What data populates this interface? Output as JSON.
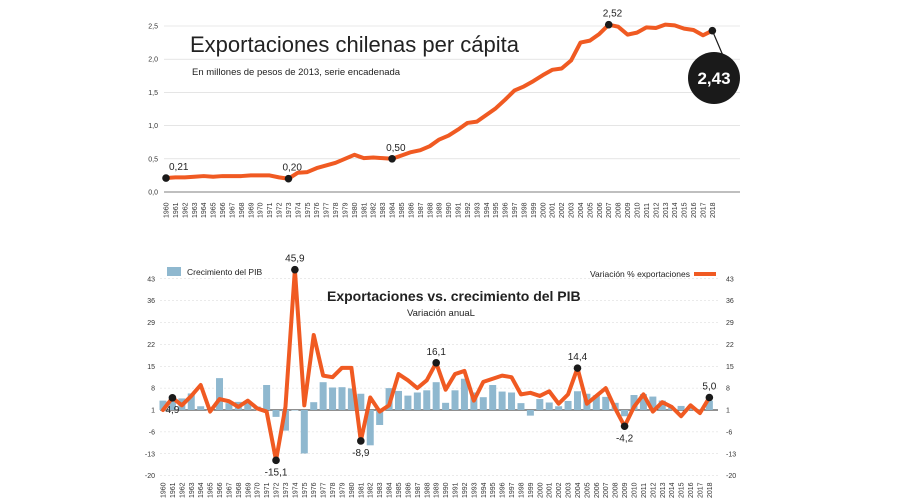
{
  "colors": {
    "line": "#f05a22",
    "bar": "#8fb8cf",
    "marker": "#1a1a1a",
    "grid": "#d6d6d6"
  },
  "chart_data": [
    {
      "type": "line",
      "title": "Exportaciones chilenas per cápita",
      "subtitle": "En millones de pesos de 2013, serie encadenada",
      "ylim": [
        0,
        2.5
      ],
      "y_ticks": [
        "0,0",
        "0,5",
        "1,0",
        "1,5",
        "2,0",
        "2,5"
      ],
      "y_tick_values": [
        0,
        0.5,
        1.0,
        1.5,
        2.0,
        2.5
      ],
      "x": [
        1960,
        1961,
        1962,
        1963,
        1964,
        1965,
        1966,
        1967,
        1968,
        1969,
        1970,
        1971,
        1972,
        1973,
        1974,
        1975,
        1976,
        1977,
        1978,
        1979,
        1980,
        1981,
        1982,
        1983,
        1984,
        1985,
        1986,
        1987,
        1988,
        1989,
        1990,
        1991,
        1992,
        1993,
        1994,
        1995,
        1996,
        1997,
        1998,
        1999,
        2000,
        2001,
        2002,
        2003,
        2004,
        2005,
        2006,
        2007,
        2008,
        2009,
        2010,
        2011,
        2012,
        2013,
        2014,
        2015,
        2016,
        2017,
        2018
      ],
      "values": [
        0.21,
        0.22,
        0.22,
        0.23,
        0.24,
        0.23,
        0.24,
        0.24,
        0.24,
        0.25,
        0.25,
        0.25,
        0.22,
        0.2,
        0.29,
        0.3,
        0.36,
        0.4,
        0.44,
        0.5,
        0.56,
        0.51,
        0.52,
        0.51,
        0.5,
        0.55,
        0.6,
        0.63,
        0.69,
        0.79,
        0.85,
        0.94,
        1.04,
        1.06,
        1.16,
        1.26,
        1.39,
        1.53,
        1.59,
        1.67,
        1.76,
        1.84,
        1.86,
        1.98,
        2.25,
        2.28,
        2.38,
        2.52,
        2.49,
        2.37,
        2.4,
        2.48,
        2.47,
        2.52,
        2.51,
        2.46,
        2.44,
        2.36,
        2.43
      ],
      "annotations": [
        {
          "year": 1960,
          "value": 0.21,
          "label": "0,21"
        },
        {
          "year": 1973,
          "value": 0.2,
          "label": "0,20"
        },
        {
          "year": 1984,
          "value": 0.5,
          "label": "0,50"
        },
        {
          "year": 2007,
          "value": 2.52,
          "label": "2,52"
        }
      ],
      "highlight": {
        "year": 2018,
        "value": 2.43,
        "label": "2,43"
      }
    },
    {
      "type": "bar+line",
      "title": "Exportaciones vs. crecimiento del PIB",
      "subtitle": "Variación anuaL",
      "ylim": [
        -20,
        43
      ],
      "y_ticks": [
        "43",
        "36",
        "29",
        "22",
        "15",
        "8",
        "1",
        "-6",
        "-13",
        "-20"
      ],
      "y_tick_values": [
        43,
        36,
        29,
        22,
        15,
        8,
        1,
        -6,
        -13,
        -20
      ],
      "x": [
        1960,
        1961,
        1962,
        1963,
        1964,
        1965,
        1966,
        1967,
        1968,
        1969,
        1970,
        1971,
        1972,
        1973,
        1974,
        1975,
        1976,
        1977,
        1978,
        1979,
        1980,
        1981,
        1982,
        1983,
        1984,
        1985,
        1986,
        1987,
        1988,
        1989,
        1990,
        1991,
        1992,
        1993,
        1994,
        1995,
        1996,
        1997,
        1998,
        1999,
        2000,
        2001,
        2002,
        2003,
        2004,
        2005,
        2006,
        2007,
        2008,
        2009,
        2010,
        2011,
        2012,
        2013,
        2014,
        2015,
        2016,
        2017,
        2018
      ],
      "series": [
        {
          "name": "Crecimiento del PIB",
          "kind": "bar",
          "values": [
            4.0,
            4.8,
            4.7,
            6.3,
            2.2,
            0.8,
            11.2,
            3.2,
            3.6,
            3.7,
            2.1,
            9.0,
            -1.2,
            -5.6,
            1.0,
            -12.9,
            3.5,
            9.9,
            8.2,
            8.3,
            7.9,
            6.2,
            -10.3,
            -3.8,
            8.0,
            7.1,
            5.6,
            6.6,
            7.3,
            9.9,
            3.3,
            7.3,
            11.0,
            6.6,
            5.1,
            9.0,
            6.9,
            6.6,
            3.2,
            -0.8,
            4.5,
            3.4,
            2.2,
            3.9,
            7.0,
            6.2,
            5.7,
            5.2,
            3.3,
            -1.0,
            5.8,
            6.1,
            5.3,
            4.0,
            1.8,
            2.3,
            1.7,
            1.3,
            4.0
          ]
        },
        {
          "name": "Variación % exportaciones",
          "kind": "line",
          "values": [
            1.0,
            4.9,
            2.5,
            5.5,
            9.0,
            0.5,
            4.5,
            3.8,
            2.0,
            4.0,
            1.5,
            0.5,
            -15.1,
            2.0,
            45.9,
            2.5,
            25.0,
            12.0,
            11.5,
            14.5,
            14.5,
            -8.9,
            5.0,
            0.5,
            2.5,
            12.5,
            10.5,
            8.0,
            10.5,
            16.1,
            7.5,
            12.5,
            13.5,
            4.0,
            10.0,
            11.0,
            12.0,
            11.5,
            6.0,
            6.5,
            5.5,
            7.0,
            3.0,
            6.0,
            14.4,
            3.0,
            5.5,
            8.0,
            1.5,
            -4.2,
            2.0,
            6.0,
            0.5,
            3.5,
            2.0,
            -1.0,
            2.5,
            0.0,
            5.0
          ]
        }
      ],
      "annotations": [
        {
          "year": 1961,
          "value": 4.9,
          "label": "4,9"
        },
        {
          "year": 1972,
          "value": -15.1,
          "label": "-15,1"
        },
        {
          "year": 1974,
          "value": 45.9,
          "label": "45,9"
        },
        {
          "year": 1981,
          "value": -8.9,
          "label": "-8,9"
        },
        {
          "year": 1989,
          "value": 16.1,
          "label": "16,1"
        },
        {
          "year": 2004,
          "value": 14.4,
          "label": "14,4"
        },
        {
          "year": 2009,
          "value": -4.2,
          "label": "-4,2"
        },
        {
          "year": 2018,
          "value": 5.0,
          "label": "5,0"
        }
      ],
      "legend": {
        "bar_label": "Crecimiento del PIB",
        "line_label": "Variación % exportaciones"
      }
    }
  ]
}
